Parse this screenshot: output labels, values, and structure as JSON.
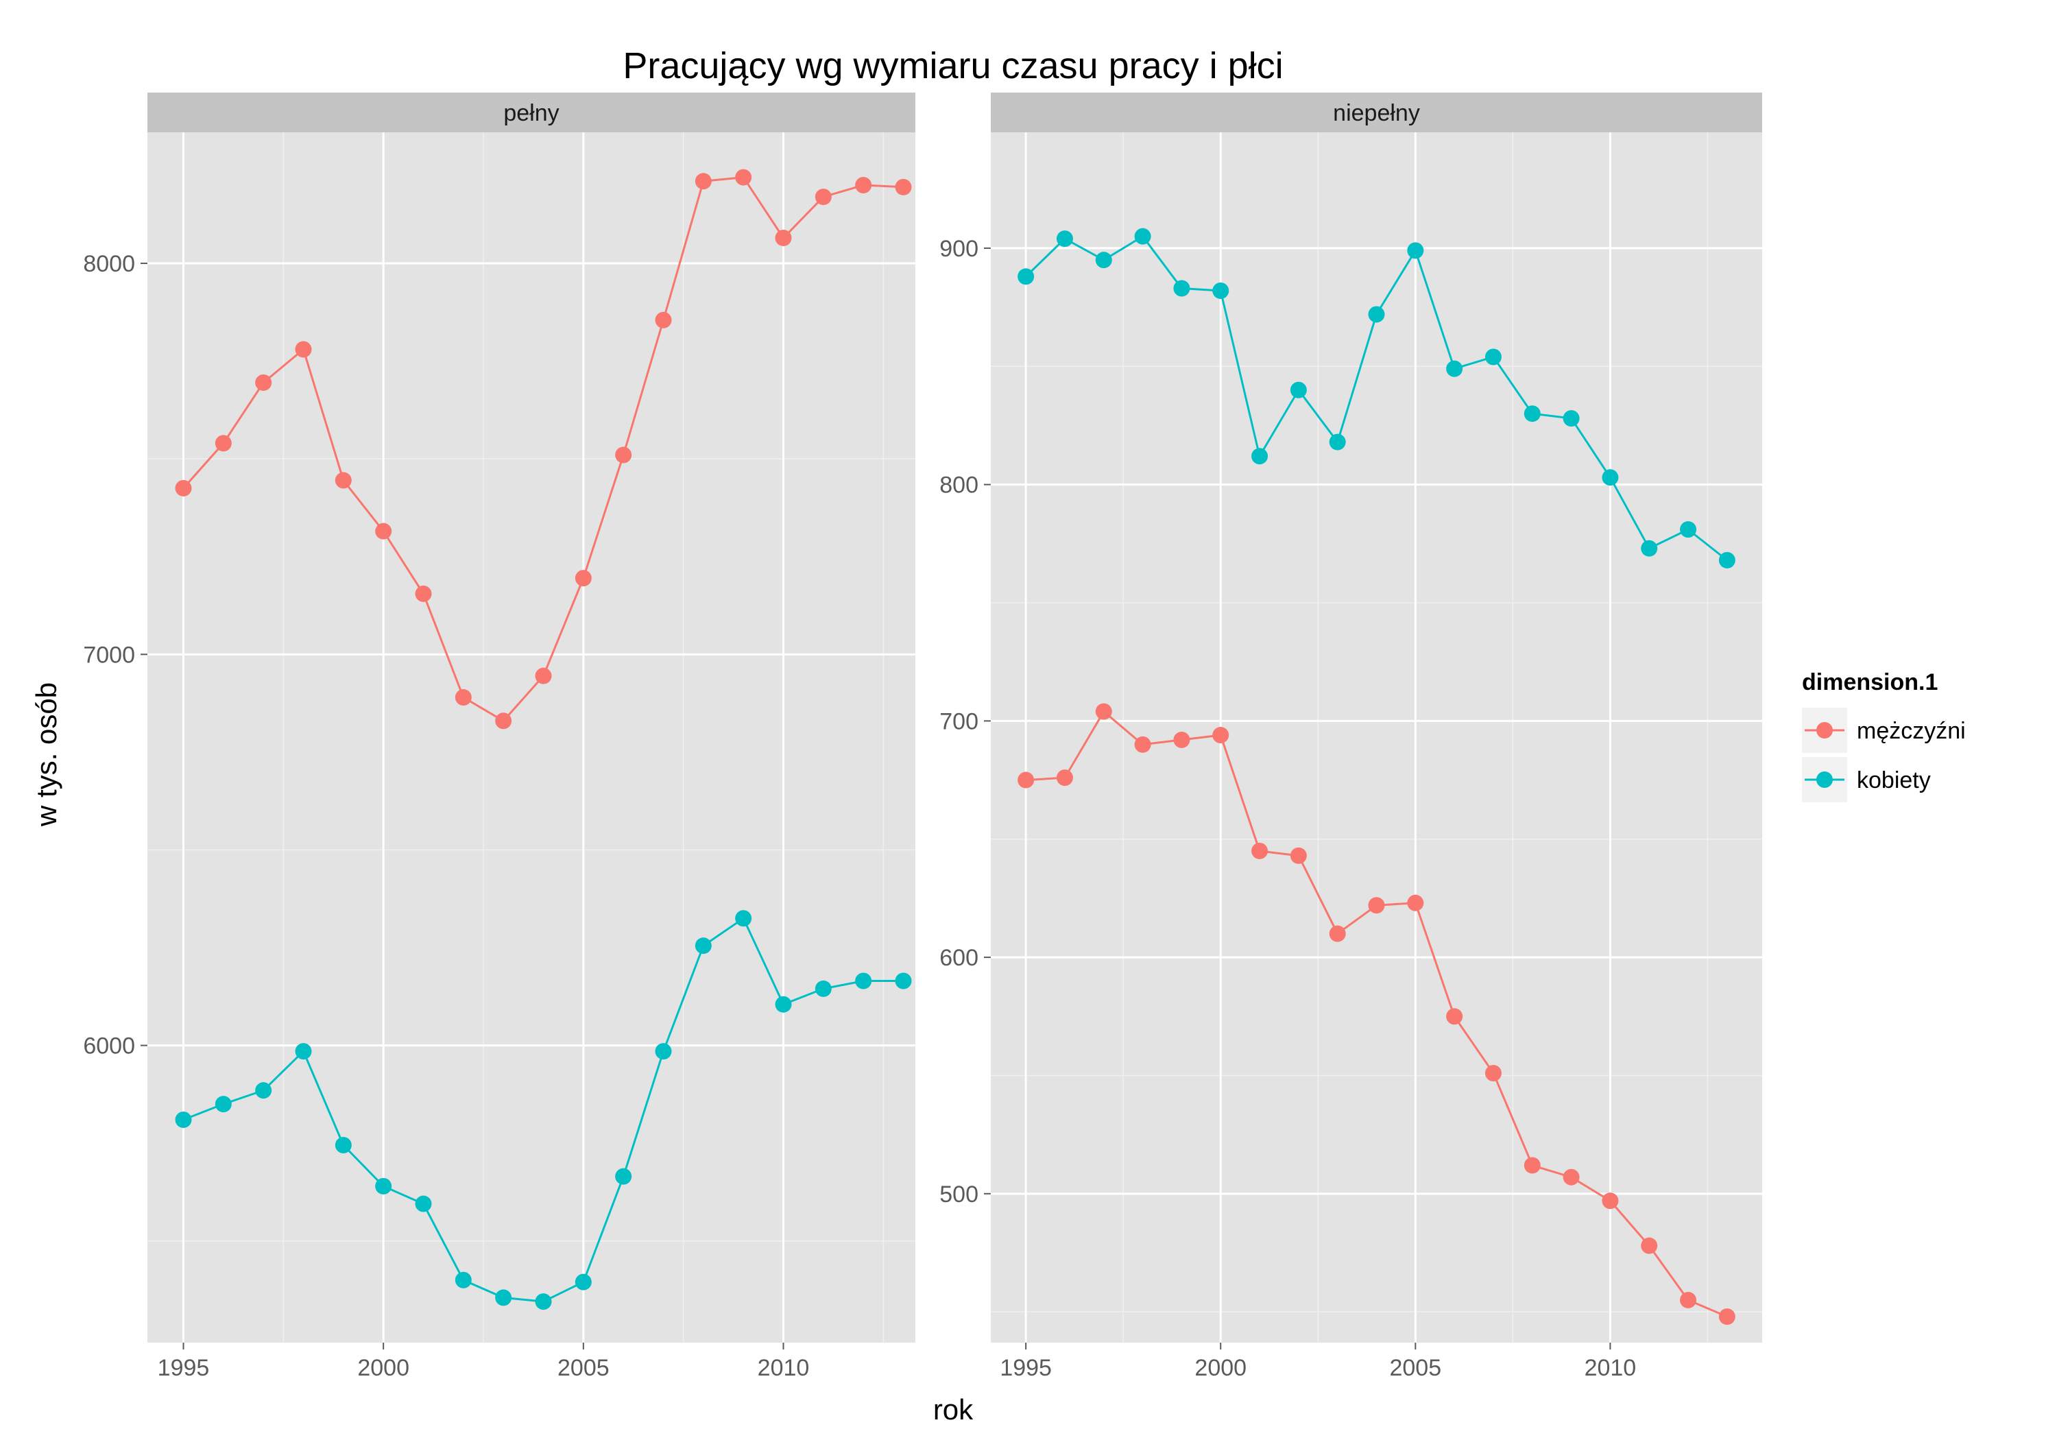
{
  "chart_data": {
    "type": "line",
    "title": "Pracujący wg wymiaru czasu pracy i płci",
    "xlabel": "rok",
    "ylabel": "w tys. osób",
    "x_ticks": [
      1995,
      2000,
      2005,
      2010
    ],
    "legend": {
      "title": "dimension.1",
      "position": "right",
      "entries": [
        {
          "name": "mężczyźni",
          "color": "#F8766D"
        },
        {
          "name": "kobiety",
          "color": "#00BFC4"
        }
      ]
    },
    "grid": true,
    "x": [
      1995,
      1996,
      1997,
      1998,
      1999,
      2000,
      2001,
      2002,
      2003,
      2004,
      2005,
      2006,
      2007,
      2008,
      2009,
      2010,
      2011,
      2012,
      2013
    ],
    "panels": [
      {
        "strip": "pełny",
        "xlim": [
          1994.1,
          2013.3
        ],
        "ylim": [
          5240,
          8335
        ],
        "y_ticks": [
          6000,
          7000,
          8000
        ],
        "series": [
          {
            "name": "mężczyźni",
            "color": "#F8766D",
            "values": [
              7425,
              7540,
              7695,
              7780,
              7445,
              7315,
              7155,
              6890,
              6830,
              6945,
              7195,
              7510,
              7855,
              8210,
              8220,
              8065,
              8170,
              8200,
              8195
            ]
          },
          {
            "name": "kobiety",
            "color": "#00BFC4",
            "values": [
              5810,
              5850,
              5885,
              5985,
              5745,
              5640,
              5595,
              5400,
              5355,
              5345,
              5395,
              5665,
              5985,
              6255,
              6325,
              6105,
              6145,
              6165,
              6165
            ]
          }
        ]
      },
      {
        "strip": "niepełny",
        "xlim": [
          1994.1,
          2013.9
        ],
        "ylim": [
          437,
          949
        ],
        "y_ticks": [
          500,
          600,
          700,
          800,
          900
        ],
        "series": [
          {
            "name": "mężczyźni",
            "color": "#F8766D",
            "values": [
              675,
              676,
              704,
              690,
              692,
              694,
              645,
              643,
              610,
              622,
              623,
              575,
              551,
              512,
              507,
              497,
              478,
              455,
              448
            ]
          },
          {
            "name": "kobiety",
            "color": "#00BFC4",
            "values": [
              888,
              904,
              895,
              905,
              883,
              882,
              812,
              840,
              818,
              872,
              899,
              849,
              854,
              830,
              828,
              803,
              773,
              781,
              768
            ]
          }
        ]
      }
    ]
  }
}
